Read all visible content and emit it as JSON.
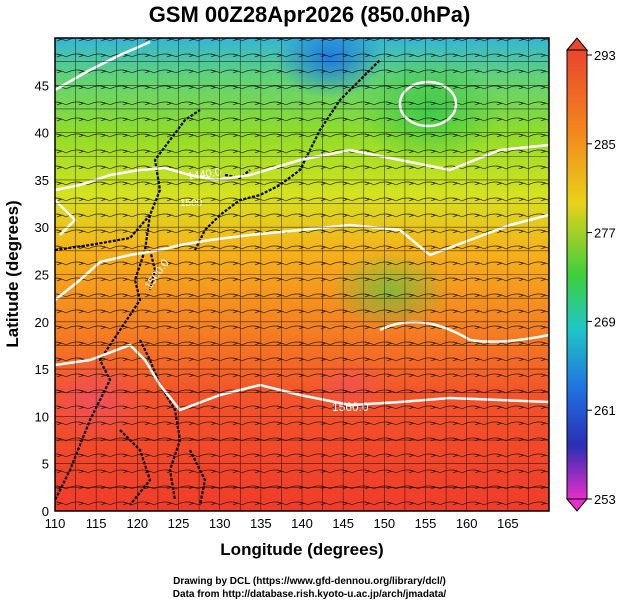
{
  "title": "GSM 00Z28Apr2026 (850.0hPa)",
  "map": {
    "xlabel": "Longitude (degrees)",
    "ylabel": "Latitude  (degrees)",
    "x_ticks": [
      "110",
      "115",
      "120",
      "125",
      "130",
      "135",
      "140",
      "145",
      "150",
      "155",
      "160",
      "165"
    ],
    "y_ticks": [
      "0",
      "5",
      "10",
      "15",
      "20",
      "25",
      "30",
      "35",
      "40",
      "45"
    ],
    "contour_labels": [
      "1440.0",
      "1500.0",
      "1560.0",
      "1500"
    ]
  },
  "colorbar": {
    "ticks": [
      "293",
      "285",
      "277",
      "269",
      "261",
      "253"
    ],
    "colors": {
      "293": "#e8462e",
      "285": "#f59b1d",
      "277": "#6fcf1a",
      "269": "#1fb7d6",
      "261": "#1f2fbf",
      "253": "#e82ec8"
    }
  },
  "credits": {
    "line1": "Drawing by DCL (https://www.gfd-dennou.org/library/dcl/)",
    "line2": "Data from http://database.rish.kyoto-u.ac.jp/arch/jmadata/"
  }
}
